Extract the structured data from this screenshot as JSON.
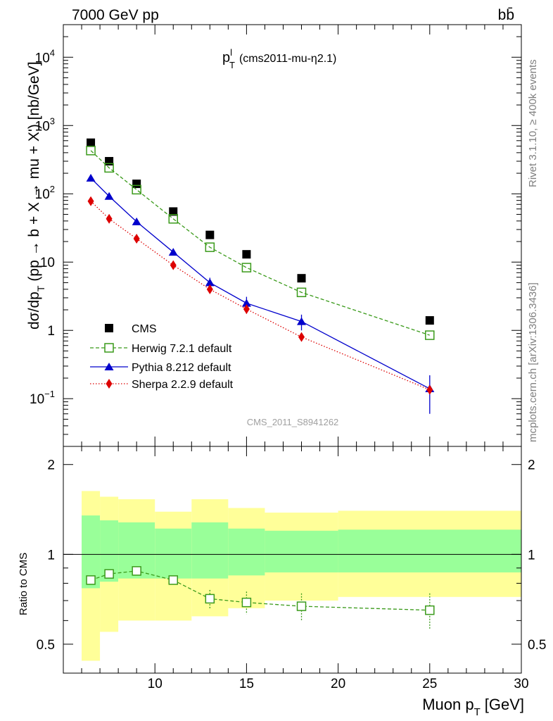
{
  "header": {
    "energy_label": "7000 GeV pp",
    "process_label": "bb̄"
  },
  "side_labels": {
    "rivet": "Rivet 3.1.10, ≥ 400k events",
    "mcplots": "mcplots.cern.ch [arXiv:1306.3436]"
  },
  "chart_data": [
    {
      "type": "line",
      "title": "p_T^l (cms2011-mu-η2.1)",
      "title_main": "p",
      "title_sup": "l",
      "title_sub": "T",
      "title_rest": "(cms2011-mu-η2.1)",
      "ylabel": "dσ/dp_T (pp → b + X → mu + X') [nb/GeV]",
      "ylabel_main": "dσ/dp",
      "ylabel_sub": "T",
      "ylabel_rest": "(pp → b + X → mu + X') [nb/GeV]",
      "yscale": "log",
      "ylim": [
        0.02,
        30000
      ],
      "xlim": [
        5,
        30
      ],
      "watermark": "CMS_2011_S8941262",
      "y_tick_labels": [
        "10^-1",
        "1",
        "10",
        "10^2",
        "10^3",
        "10^4"
      ],
      "legend_position": "bottom-left",
      "series": [
        {
          "name": "CMS",
          "style": "square",
          "color": "#000000",
          "x": [
            6.5,
            7.5,
            9,
            11,
            13,
            15,
            18,
            25
          ],
          "y": [
            560,
            300,
            140,
            55,
            25,
            13,
            5.8,
            1.4
          ]
        },
        {
          "name": "Herwig 7.2.1 default",
          "style": "open-square-dashed",
          "color": "#3a9a1a",
          "x": [
            6.5,
            7.5,
            9,
            11,
            13,
            15,
            18,
            25
          ],
          "y": [
            430,
            240,
            115,
            43,
            16.5,
            8.3,
            3.6,
            0.85
          ]
        },
        {
          "name": "Pythia 8.212 default",
          "style": "triangle-solid",
          "color": "#0000cc",
          "x": [
            6.5,
            7.5,
            9,
            11,
            13,
            15,
            18,
            25
          ],
          "y": [
            170,
            92,
            39,
            14,
            5.0,
            2.5,
            1.35,
            0.14
          ],
          "yerr": [
            0,
            0,
            0,
            1.2,
            0.9,
            0.6,
            0.35,
            0.08
          ]
        },
        {
          "name": "Sherpa 2.2.9 default",
          "style": "diamond-dotted",
          "color": "#dd0000",
          "x": [
            6.5,
            7.5,
            9,
            11,
            13,
            15,
            18,
            25
          ],
          "y": [
            78,
            43,
            22,
            9.0,
            4.0,
            2.05,
            0.8,
            0.135
          ],
          "yerr": [
            0,
            0,
            0,
            0,
            0,
            0.3,
            0,
            0
          ]
        }
      ]
    },
    {
      "type": "line",
      "ylabel": "Ratio to CMS",
      "xlabel": "Muon p_T [GeV]",
      "xlabel_main": "Muon p",
      "xlabel_sub": "T",
      "xlabel_rest": "[GeV]",
      "xlim": [
        5,
        30
      ],
      "ylim": [
        0.4,
        2.3
      ],
      "x_ticks": [
        10,
        15,
        20,
        25,
        30
      ],
      "y_ticks": [
        0.5,
        1,
        2
      ],
      "reference_line": 1,
      "bands": {
        "x_edges": [
          6,
          7,
          8,
          10,
          12,
          14,
          16,
          20,
          30
        ],
        "outer_low": [
          0.44,
          0.55,
          0.6,
          0.6,
          0.62,
          0.66,
          0.7,
          0.72,
          0.72
        ],
        "outer_high": [
          1.63,
          1.56,
          1.53,
          1.39,
          1.53,
          1.43,
          1.38,
          1.4,
          1.4
        ],
        "inner_low": [
          0.77,
          0.81,
          0.83,
          0.83,
          0.83,
          0.85,
          0.87,
          0.87,
          0.87
        ],
        "inner_high": [
          1.35,
          1.3,
          1.28,
          1.22,
          1.28,
          1.22,
          1.2,
          1.21,
          1.21
        ],
        "outer_color": "#ffff99",
        "inner_color": "#99ff99"
      },
      "series": [
        {
          "name": "Herwig 7.2.1 default",
          "color": "#3a9a1a",
          "x": [
            6.5,
            7.5,
            9,
            11,
            13,
            15,
            18,
            25
          ],
          "y": [
            0.82,
            0.86,
            0.88,
            0.82,
            0.71,
            0.69,
            0.67,
            0.65
          ],
          "yerr": [
            0,
            0,
            0,
            0.02,
            0.05,
            0.06,
            0.07,
            0.09
          ]
        }
      ]
    }
  ]
}
